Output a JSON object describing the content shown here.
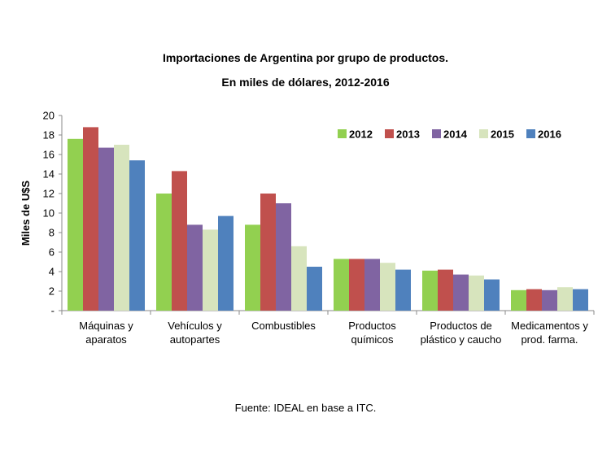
{
  "chart_data": {
    "type": "bar",
    "title": "Importaciones de Argentina por grupo de productos.",
    "subtitle": "En miles de dólares, 2012-2016",
    "ylabel": "Miles de U$S",
    "xlabel": "",
    "ylim": [
      0,
      20
    ],
    "yticks": [
      "-",
      "2",
      "4",
      "6",
      "8",
      "10",
      "12",
      "14",
      "16",
      "18",
      "20"
    ],
    "grid": false,
    "legend_position": "top-right",
    "categories": [
      [
        "Máquinas y",
        "aparatos"
      ],
      [
        "Vehículos y",
        "autopartes"
      ],
      [
        "Combustibles"
      ],
      [
        "Productos",
        "químicos"
      ],
      [
        "Productos de",
        "plástico y caucho"
      ],
      [
        "Medicamentos y",
        "prod. farma."
      ]
    ],
    "series": [
      {
        "name": "2012",
        "color": "#92d050",
        "values": [
          17.6,
          12.0,
          8.8,
          5.3,
          4.1,
          2.1
        ]
      },
      {
        "name": "2013",
        "color": "#c0504d",
        "values": [
          18.8,
          14.3,
          12.0,
          5.3,
          4.2,
          2.2
        ]
      },
      {
        "name": "2014",
        "color": "#8064a2",
        "values": [
          16.7,
          8.8,
          11.0,
          5.3,
          3.7,
          2.1
        ]
      },
      {
        "name": "2015",
        "color": "#d7e4bd",
        "values": [
          17.0,
          8.3,
          6.6,
          4.9,
          3.6,
          2.4
        ]
      },
      {
        "name": "2016",
        "color": "#4f81bd",
        "values": [
          15.4,
          9.7,
          4.5,
          4.2,
          3.2,
          2.2
        ]
      }
    ]
  },
  "source": "Fuente: IDEAL en base a ITC."
}
